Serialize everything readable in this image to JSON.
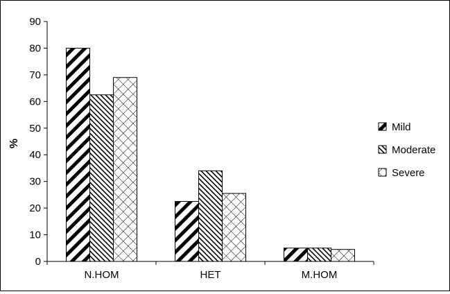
{
  "chart_data": {
    "type": "bar",
    "title": "",
    "xlabel": "",
    "ylabel": "%",
    "ylim": [
      0,
      90
    ],
    "yticks": [
      0,
      10,
      20,
      30,
      40,
      50,
      60,
      70,
      80,
      90
    ],
    "grid": false,
    "legend": "right",
    "categories": [
      "N.HOM",
      "HET",
      "M.HOM"
    ],
    "series": [
      {
        "name": "Mild",
        "values": [
          80,
          22.5,
          5
        ],
        "pattern": "diagonal-backslash-wide"
      },
      {
        "name": "Moderate",
        "values": [
          62.5,
          34,
          5
        ],
        "pattern": "diagonal-slash-dense"
      },
      {
        "name": "Severe",
        "values": [
          69,
          25.5,
          4.5
        ],
        "pattern": "diamond-lattice"
      }
    ],
    "colors": {
      "bar_stroke": "#000000",
      "background": "#ffffff"
    }
  }
}
